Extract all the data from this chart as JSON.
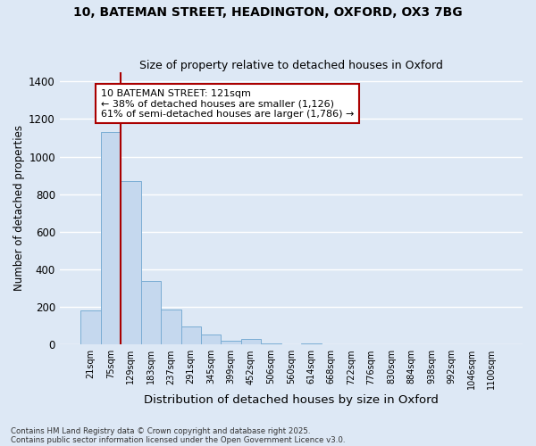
{
  "title1": "10, BATEMAN STREET, HEADINGTON, OXFORD, OX3 7BG",
  "title2": "Size of property relative to detached houses in Oxford",
  "xlabel": "Distribution of detached houses by size in Oxford",
  "ylabel": "Number of detached properties",
  "categories": [
    "21sqm",
    "75sqm",
    "129sqm",
    "183sqm",
    "237sqm",
    "291sqm",
    "345sqm",
    "399sqm",
    "452sqm",
    "506sqm",
    "560sqm",
    "614sqm",
    "668sqm",
    "722sqm",
    "776sqm",
    "830sqm",
    "884sqm",
    "938sqm",
    "992sqm",
    "1046sqm",
    "1100sqm"
  ],
  "values": [
    180,
    1130,
    870,
    340,
    185,
    95,
    55,
    20,
    28,
    5,
    0,
    5,
    0,
    3,
    0,
    0,
    0,
    0,
    0,
    0,
    0
  ],
  "bar_color": "#c5d8ee",
  "bar_edge_color": "#7aadd4",
  "vline_color": "#aa0000",
  "annotation_text": "10 BATEMAN STREET: 121sqm\n← 38% of detached houses are smaller (1,126)\n61% of semi-detached houses are larger (1,786) →",
  "annotation_box_color": "#ffffff",
  "annotation_box_edge": "#aa0000",
  "bg_color": "#dde8f5",
  "grid_color": "#ffffff",
  "footer1": "Contains HM Land Registry data © Crown copyright and database right 2025.",
  "footer2": "Contains public sector information licensed under the Open Government Licence v3.0.",
  "ylim": [
    0,
    1450
  ],
  "yticks": [
    0,
    200,
    400,
    600,
    800,
    1000,
    1200,
    1400
  ]
}
